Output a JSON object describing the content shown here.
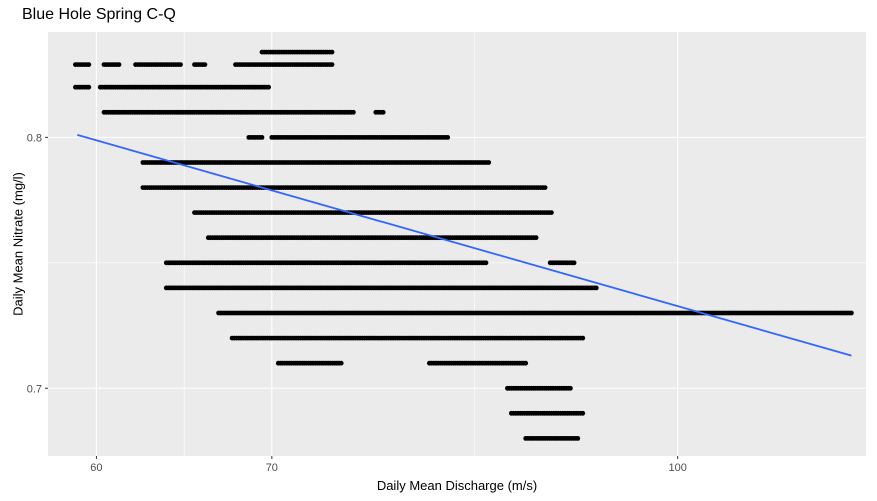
{
  "chart_data": {
    "type": "scatter",
    "title": "Blue Hole Spring C-Q",
    "xlabel": "Daily Mean Discharge (m/s)",
    "ylabel": "Daily Mean Nitrate (mg/l)",
    "x_scale": "log10",
    "xlim": [
      57.5,
      118
    ],
    "ylim": [
      0.673,
      0.842
    ],
    "x_ticks": [
      60,
      70,
      100
    ],
    "x_tick_labels": [
      "60",
      "70",
      "100"
    ],
    "y_ticks": [
      0.7,
      0.8
    ],
    "y_tick_labels": [
      "0.7",
      "0.8"
    ],
    "grid": true,
    "point_color": "#000000",
    "trend_color": "#3366FF",
    "trend_line": {
      "method": "linear (log x)",
      "points": [
        [
          59,
          0.801
        ],
        [
          116.5,
          0.713
        ]
      ]
    },
    "point_bands": [
      {
        "y": 0.834,
        "segments": [
          [
            69.4,
            73.8
          ]
        ]
      },
      {
        "y": 0.829,
        "segments": [
          [
            58.9,
            59.6
          ],
          [
            60.4,
            61.2
          ],
          [
            62.1,
            64.6
          ],
          [
            65.4,
            66.0
          ],
          [
            67.8,
            73.8
          ]
        ]
      },
      {
        "y": 0.82,
        "segments": [
          [
            58.9,
            59.6
          ],
          [
            60.2,
            69.8
          ]
        ]
      },
      {
        "y": 0.81,
        "segments": [
          [
            60.4,
            75.2
          ],
          [
            76.7,
            77.2
          ]
        ]
      },
      {
        "y": 0.8,
        "segments": [
          [
            68.6,
            69.4
          ],
          [
            70.0,
            81.7
          ]
        ]
      },
      {
        "y": 0.79,
        "segments": [
          [
            62.5,
            84.7
          ]
        ]
      },
      {
        "y": 0.78,
        "segments": [
          [
            62.5,
            89.0
          ]
        ]
      },
      {
        "y": 0.77,
        "segments": [
          [
            65.4,
            89.5
          ]
        ]
      },
      {
        "y": 0.76,
        "segments": [
          [
            66.2,
            88.3
          ]
        ]
      },
      {
        "y": 0.75,
        "segments": [
          [
            63.8,
            84.5
          ],
          [
            89.4,
            91.3
          ]
        ]
      },
      {
        "y": 0.74,
        "segments": [
          [
            63.8,
            93.1
          ]
        ]
      },
      {
        "y": 0.73,
        "segments": [
          [
            66.8,
            116.5
          ]
        ]
      },
      {
        "y": 0.72,
        "segments": [
          [
            67.6,
            92.0
          ]
        ]
      },
      {
        "y": 0.71,
        "segments": [
          [
            70.4,
            74.4
          ],
          [
            80.4,
            87.5
          ]
        ]
      },
      {
        "y": 0.7,
        "segments": [
          [
            86.1,
            91.0
          ]
        ]
      },
      {
        "y": 0.69,
        "segments": [
          [
            86.4,
            92.0
          ]
        ]
      },
      {
        "y": 0.68,
        "segments": [
          [
            87.5,
            91.6
          ]
        ]
      }
    ]
  }
}
